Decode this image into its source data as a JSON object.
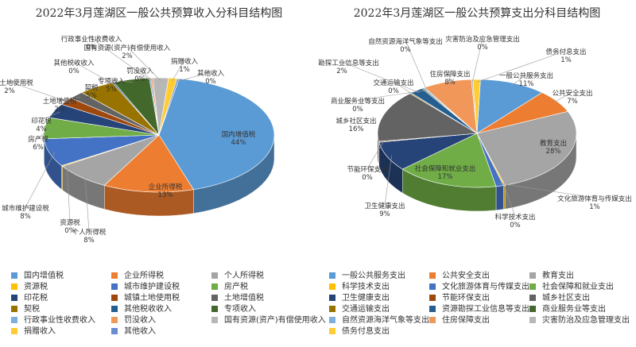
{
  "chart_data": [
    {
      "type": "pie",
      "title": "2022年3月莲湖区一般公共预算收入分科目结构图",
      "legend_position": "bottom",
      "slices": [
        {
          "name": "国内增值税",
          "value": 44,
          "pct_label": "44%",
          "color": "#5B9BD5"
        },
        {
          "name": "企业所得税",
          "value": 13,
          "pct_label": "13%",
          "color": "#ED7D31"
        },
        {
          "name": "个人所得税",
          "value": 8,
          "pct_label": "8%",
          "color": "#A5A5A5"
        },
        {
          "name": "资源税",
          "value": 0,
          "pct_label": "0%",
          "color": "#FFC000"
        },
        {
          "name": "城市维护建设税",
          "value": 8,
          "pct_label": "8%",
          "color": "#4472C4"
        },
        {
          "name": "房产税",
          "value": 6,
          "pct_label": "6%",
          "color": "#70AD47"
        },
        {
          "name": "印花税",
          "value": 4,
          "pct_label": "4%",
          "color": "#264478"
        },
        {
          "name": "城镇土地使用税",
          "value": 2,
          "pct_label": "2%",
          "color": "#9E480E"
        },
        {
          "name": "土地增值税",
          "value": 2,
          "pct_label": "2%",
          "color": "#636363"
        },
        {
          "name": "契税",
          "value": 5,
          "pct_label": "5%",
          "color": "#997300"
        },
        {
          "name": "其他税收收入",
          "value": 0,
          "pct_label": "0%",
          "color": "#255E91"
        },
        {
          "name": "专项收入",
          "value": 5,
          "pct_label": "5%",
          "color": "#43682B"
        },
        {
          "name": "行政事业性收费收入",
          "value": 0,
          "pct_label": "0%",
          "color": "#7CAFDD"
        },
        {
          "name": "罚没收入",
          "value": 0,
          "pct_label": "0%",
          "color": "#F1975A"
        },
        {
          "name": "国有资源(资产)有偿使用收入",
          "value": 2,
          "pct_label": "2%",
          "color": "#B7B7B7"
        },
        {
          "name": "捐赠收入",
          "value": 1,
          "pct_label": "1%",
          "color": "#FFCD33"
        },
        {
          "name": "其他收入",
          "value": 0,
          "pct_label": "0%",
          "color": "#698ED0"
        }
      ]
    },
    {
      "type": "pie",
      "title": "2022年3月莲湖区一般公共预算支出分科目结构图",
      "legend_position": "bottom",
      "slices": [
        {
          "name": "一般公共服务支出",
          "value": 11,
          "pct_label": "11%",
          "color": "#5B9BD5"
        },
        {
          "name": "公共安全支出",
          "value": 7,
          "pct_label": "7%",
          "color": "#ED7D31"
        },
        {
          "name": "教育支出",
          "value": 28,
          "pct_label": "28%",
          "color": "#A5A5A5"
        },
        {
          "name": "科学技术支出",
          "value": 0,
          "pct_label": "0%",
          "color": "#FFC000"
        },
        {
          "name": "文化旅游体育与传媒支出",
          "value": 1,
          "pct_label": "1%",
          "color": "#4472C4"
        },
        {
          "name": "社会保障和就业支出",
          "value": 17,
          "pct_label": "17%",
          "color": "#70AD47"
        },
        {
          "name": "卫生健康支出",
          "value": 9,
          "pct_label": "9%",
          "color": "#264478"
        },
        {
          "name": "节能环保支出",
          "value": 0,
          "pct_label": "0%",
          "color": "#9E480E"
        },
        {
          "name": "城乡社区支出",
          "value": 16,
          "pct_label": "16%",
          "color": "#636363"
        },
        {
          "name": "交通运输支出",
          "value": 0,
          "pct_label": "0%",
          "color": "#997300"
        },
        {
          "name": "资源勘探工业信息等支出",
          "value": 2,
          "pct_label": "2%",
          "color": "#255E91"
        },
        {
          "name": "商业服务业等支出",
          "value": 0,
          "pct_label": "0%",
          "color": "#43682B"
        },
        {
          "name": "自然资源海洋气象等支出",
          "value": 0,
          "pct_label": "0%",
          "color": "#7CAFDD"
        },
        {
          "name": "住房保障支出",
          "value": 8,
          "pct_label": "8%",
          "color": "#F1975A"
        },
        {
          "name": "灾害防治及应急管理支出",
          "value": 0,
          "pct_label": "0%",
          "color": "#B7B7B7"
        },
        {
          "name": "债务付息支出",
          "value": 1,
          "pct_label": "1%",
          "color": "#FFCD33"
        }
      ]
    }
  ]
}
